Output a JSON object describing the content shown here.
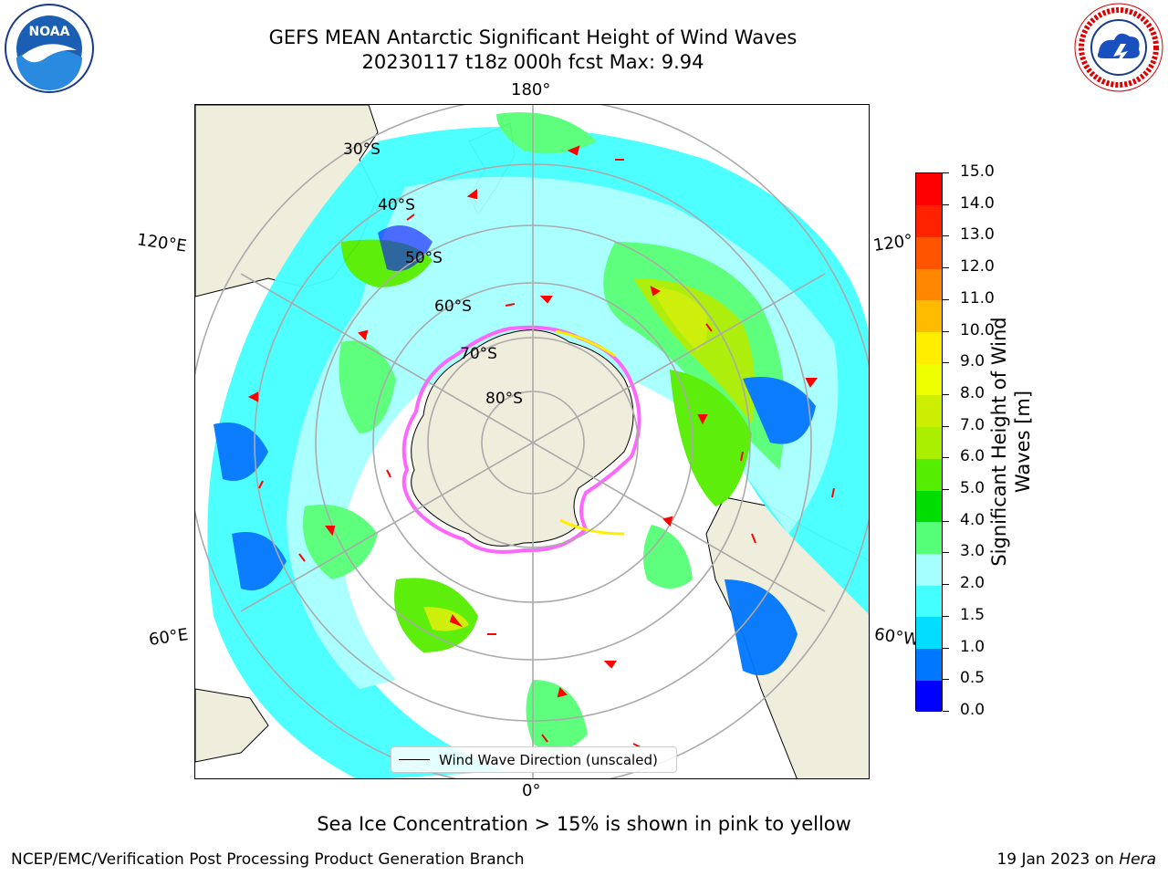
{
  "header": {
    "title_line1": "GEFS MEAN Antarctic Significant Height of Wind Waves",
    "title_line2": "20230117 t18z 000h fcst   Max: 9.94"
  },
  "logos": {
    "left_icon": "noaa-logo",
    "left_text": "NOAA",
    "right_icon": "nws-logo",
    "right_text": "NATIONAL WEATHER SERVICE"
  },
  "map": {
    "projection": "south-polar-stereographic",
    "longitude_labels": {
      "top": "180°",
      "bottom": "0°",
      "upper_left": "120°E",
      "upper_right": "120°",
      "lower_left": "60°E",
      "lower_right": "60°W"
    },
    "latitude_labels": [
      "30°S",
      "40°S",
      "50°S",
      "60°S",
      "70°S",
      "80°S"
    ],
    "land_color": "#efeddc",
    "ocean_color": "#ffffff",
    "sea_ice_color": "#ff66ff",
    "arrow_color": "#ff0000"
  },
  "legend": {
    "label": "Wind Wave Direction (unscaled)"
  },
  "colorbar": {
    "title": "Significant Height of Wind Waves [m]",
    "ticks": [
      "0.0",
      "0.5",
      "1.0",
      "1.5",
      "2.0",
      "3.0",
      "4.0",
      "5.0",
      "6.0",
      "7.0",
      "8.0",
      "9.0",
      "10.0",
      "11.0",
      "12.0",
      "13.0",
      "14.0",
      "15.0"
    ],
    "colors": [
      "#0000ff",
      "#0077ff",
      "#00ddff",
      "#44ffff",
      "#a6ffff",
      "#55ff77",
      "#00dd00",
      "#55ee00",
      "#aaee00",
      "#ccee00",
      "#eeff00",
      "#ffee00",
      "#ffbb00",
      "#ff8800",
      "#ff5500",
      "#ff2200",
      "#ff0000"
    ]
  },
  "chart_data": {
    "type": "heatmap",
    "title": "GEFS MEAN Antarctic Significant Height of Wind Waves",
    "subtitle": "20230117 t18z 000h fcst   Max: 9.94",
    "variable": "Significant Height of Wind Waves [m]",
    "max": 9.94,
    "color_levels": [
      0.0,
      0.5,
      1.0,
      1.5,
      2.0,
      3.0,
      4.0,
      5.0,
      6.0,
      7.0,
      8.0,
      9.0,
      10.0,
      11.0,
      12.0,
      13.0,
      14.0,
      15.0
    ]
  },
  "footer": {
    "note": "Sea Ice Concentration > 15% is shown in pink to yellow",
    "credit": "NCEP/EMC/Verification Post Processing Product Generation Branch",
    "date": "19 Jan 2023 on ",
    "host": "Hera"
  }
}
